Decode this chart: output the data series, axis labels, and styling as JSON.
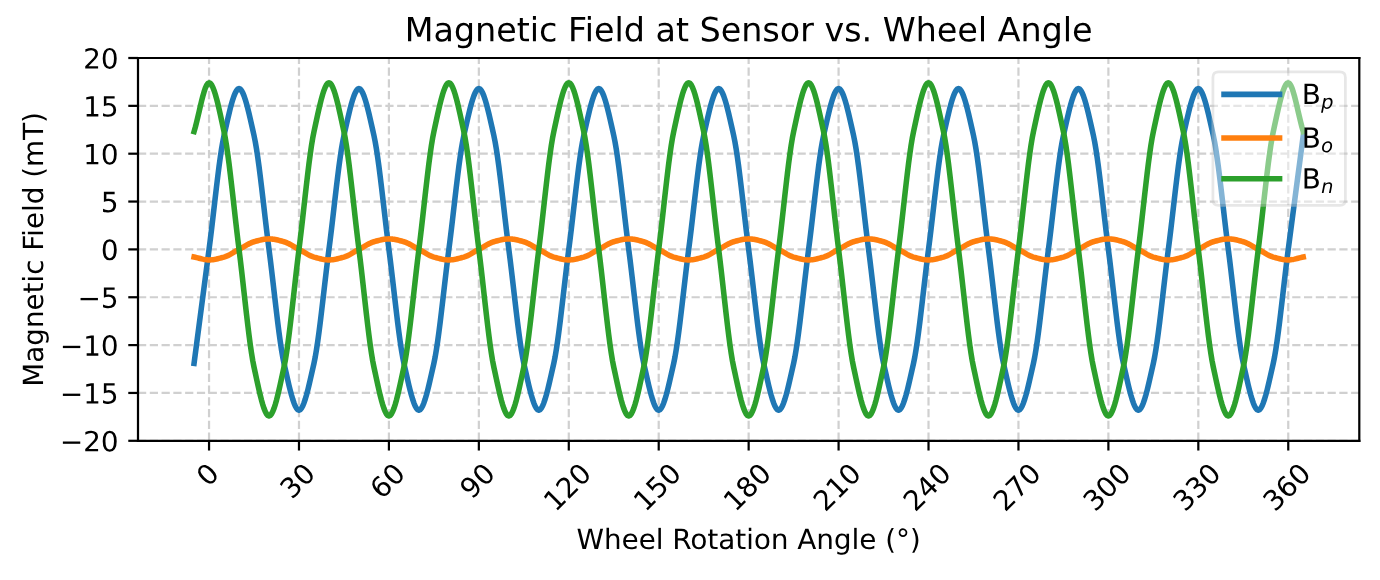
{
  "chart_data": {
    "type": "line",
    "title": "Magnetic Field at Sensor vs. Wheel Angle",
    "xlabel": "Wheel Rotation Angle (°)",
    "ylabel": "Magnetic Field (mT)",
    "x": [
      -5,
      0,
      5,
      10,
      15,
      20,
      25,
      30,
      35,
      40,
      45,
      50,
      55,
      60,
      65,
      70,
      75,
      80,
      85,
      90,
      95,
      100,
      105,
      110,
      115,
      120,
      125,
      130,
      135,
      140,
      145,
      150,
      155,
      160,
      165,
      170,
      175,
      180,
      185,
      190,
      195,
      200,
      205,
      210,
      215,
      220,
      225,
      230,
      235,
      240,
      245,
      250,
      255,
      260,
      265,
      270,
      275,
      280,
      285,
      290,
      295,
      300,
      305,
      310,
      315,
      320,
      325,
      330,
      335,
      340,
      345,
      350,
      355,
      360,
      365
    ],
    "series": [
      {
        "name": "B$_{p}$",
        "color": "#1f77b4",
        "values": [
          -11.9,
          0,
          11.9,
          16.8,
          11.9,
          0,
          -11.9,
          -16.8,
          -11.9,
          0,
          11.9,
          16.8,
          11.9,
          0,
          -11.9,
          -16.8,
          -11.9,
          0,
          11.9,
          16.8,
          11.9,
          0,
          -11.9,
          -16.8,
          -11.9,
          0,
          11.9,
          16.8,
          11.9,
          0,
          -11.9,
          -16.8,
          -11.9,
          0,
          11.9,
          16.8,
          11.9,
          0,
          -11.9,
          -16.8,
          -11.9,
          0,
          11.9,
          16.8,
          11.9,
          0,
          -11.9,
          -16.8,
          -11.9,
          0,
          11.9,
          16.8,
          11.9,
          0,
          -11.9,
          -16.8,
          -11.9,
          0,
          11.9,
          16.8,
          11.9,
          0,
          -11.9,
          -16.8,
          -11.9,
          0,
          11.9,
          16.8,
          11.9,
          0,
          -11.9,
          -16.8,
          -11.9,
          0,
          11.9
        ]
      },
      {
        "name": "B$_{o}$",
        "color": "#ff7f0e",
        "values": [
          -0.8,
          -1.1,
          -0.8,
          0,
          0.8,
          1.1,
          0.8,
          0,
          -0.8,
          -1.1,
          -0.8,
          0,
          0.8,
          1.1,
          0.8,
          0,
          -0.8,
          -1.1,
          -0.8,
          0,
          0.8,
          1.1,
          0.8,
          0,
          -0.8,
          -1.1,
          -0.8,
          0,
          0.8,
          1.1,
          0.8,
          0,
          -0.8,
          -1.1,
          -0.8,
          0,
          0.8,
          1.1,
          0.8,
          0,
          -0.8,
          -1.1,
          -0.8,
          0,
          0.8,
          1.1,
          0.8,
          0,
          -0.8,
          -1.1,
          -0.8,
          0,
          0.8,
          1.1,
          0.8,
          0,
          -0.8,
          -1.1,
          -0.8,
          0,
          0.8,
          1.1,
          0.8,
          0,
          -0.8,
          -1.1,
          -0.8,
          0,
          0.8,
          1.1,
          0.8,
          0,
          -0.8,
          -1.1,
          -0.8
        ]
      },
      {
        "name": "B$_{n}$",
        "color": "#2ca02c",
        "values": [
          12.3,
          17.4,
          12.3,
          0,
          -12.3,
          -17.4,
          -12.3,
          0,
          12.3,
          17.4,
          12.3,
          0,
          -12.3,
          -17.4,
          -12.3,
          0,
          12.3,
          17.4,
          12.3,
          0,
          -12.3,
          -17.4,
          -12.3,
          0,
          12.3,
          17.4,
          12.3,
          0,
          -12.3,
          -17.4,
          -12.3,
          0,
          12.3,
          17.4,
          12.3,
          0,
          -12.3,
          -17.4,
          -12.3,
          0,
          12.3,
          17.4,
          12.3,
          0,
          -12.3,
          -17.4,
          -12.3,
          0,
          12.3,
          17.4,
          12.3,
          0,
          -12.3,
          -17.4,
          -12.3,
          0,
          12.3,
          17.4,
          12.3,
          0,
          -12.3,
          -17.4,
          -12.3,
          0,
          12.3,
          17.4,
          12.3,
          0,
          -12.3,
          -17.4,
          -12.3,
          0,
          12.3,
          17.4,
          12.3
        ]
      }
    ],
    "xlim": [
      -23.7,
      383.7
    ],
    "xticks": [
      0,
      30,
      60,
      90,
      120,
      150,
      180,
      210,
      240,
      270,
      300,
      330,
      360
    ],
    "ylim": [
      -20,
      20
    ],
    "yticks": [
      -20,
      -15,
      -10,
      -5,
      0,
      5,
      10,
      15,
      20
    ],
    "grid": true,
    "legend": "top right",
    "line_style": "solid",
    "marker": "none"
  }
}
